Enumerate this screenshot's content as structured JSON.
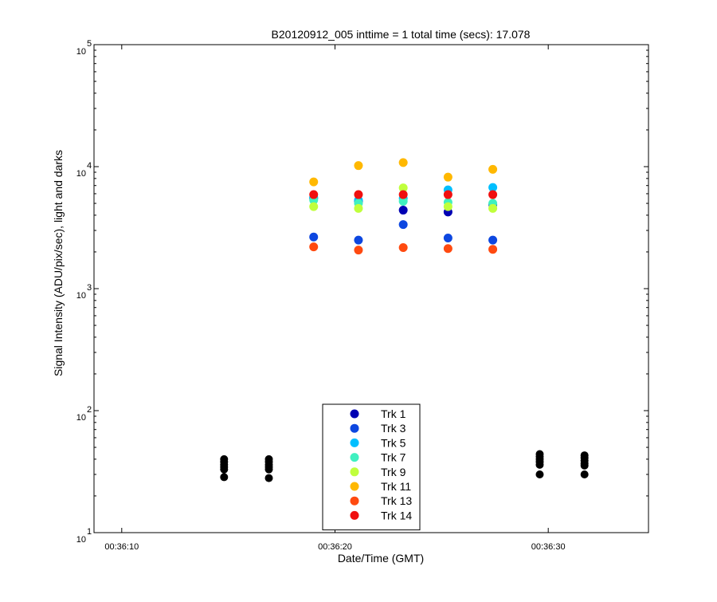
{
  "chart_data": {
    "type": "scatter",
    "title": "B20120912_005 inttime = 1 total time (secs): 17.078",
    "xlabel": "Date/Time (GMT)",
    "ylabel": "Signal Intensity (ADU/pix/sec), light and darks",
    "yscale": "log",
    "ylim": [
      10,
      100000
    ],
    "xlim": [
      "00:36:08.7",
      "00:36:34.7"
    ],
    "x_tick_labels": [
      "00:36:10",
      "00:36:20",
      "00:36:30"
    ],
    "x_ticks": [
      "00:36:10",
      "00:36:20",
      "00:36:30"
    ],
    "y_ticks": [
      {
        "base": "10",
        "exp": "1",
        "value": 10
      },
      {
        "base": "10",
        "exp": "2",
        "value": 100
      },
      {
        "base": "10",
        "exp": "3",
        "value": 1000
      },
      {
        "base": "10",
        "exp": "4",
        "value": 10000
      },
      {
        "base": "10",
        "exp": "5",
        "value": 100000
      }
    ],
    "grid": false,
    "legend_position": "bottom-center",
    "series": [
      {
        "name": "Trk 1",
        "color": "#0000b3",
        "points": [
          [
            "00:36:19.0",
            5500
          ],
          [
            "00:36:21.1",
            5200
          ],
          [
            "00:36:23.2",
            4400
          ],
          [
            "00:36:25.3",
            4250
          ],
          [
            "00:36:27.4",
            4900
          ]
        ]
      },
      {
        "name": "Trk 3",
        "color": "#0d47e0",
        "points": [
          [
            "00:36:19.0",
            2650
          ],
          [
            "00:36:21.1",
            2500
          ],
          [
            "00:36:23.2",
            3350
          ],
          [
            "00:36:25.3",
            2600
          ],
          [
            "00:36:27.4",
            2500
          ]
        ]
      },
      {
        "name": "Trk 5",
        "color": "#00bfff",
        "points": [
          [
            "00:36:19.0",
            5600
          ],
          [
            "00:36:21.1",
            5300
          ],
          [
            "00:36:23.2",
            5500
          ],
          [
            "00:36:25.3",
            6450
          ],
          [
            "00:36:27.4",
            6750
          ]
        ]
      },
      {
        "name": "Trk 7",
        "color": "#40f0c0",
        "points": [
          [
            "00:36:19.0",
            5300
          ],
          [
            "00:36:21.1",
            5000
          ],
          [
            "00:36:23.2",
            5200
          ],
          [
            "00:36:25.3",
            5100
          ],
          [
            "00:36:27.4",
            5000
          ]
        ]
      },
      {
        "name": "Trk 9",
        "color": "#c0ff3c",
        "points": [
          [
            "00:36:19.0",
            4700
          ],
          [
            "00:36:21.1",
            4550
          ],
          [
            "00:36:23.2",
            6700
          ],
          [
            "00:36:25.3",
            4700
          ],
          [
            "00:36:27.4",
            4550
          ]
        ]
      },
      {
        "name": "Trk 11",
        "color": "#ffb800",
        "points": [
          [
            "00:36:19.0",
            7500
          ],
          [
            "00:36:21.1",
            10200
          ],
          [
            "00:36:23.2",
            10800
          ],
          [
            "00:36:25.3",
            8200
          ],
          [
            "00:36:27.4",
            9500
          ]
        ]
      },
      {
        "name": "Trk 13",
        "color": "#ff4a10",
        "points": [
          [
            "00:36:19.0",
            2200
          ],
          [
            "00:36:21.1",
            2070
          ],
          [
            "00:36:23.2",
            2170
          ],
          [
            "00:36:25.3",
            2130
          ],
          [
            "00:36:27.4",
            2100
          ]
        ]
      },
      {
        "name": "Trk 14",
        "color": "#f01010",
        "points": [
          [
            "00:36:19.0",
            5900
          ],
          [
            "00:36:21.1",
            5900
          ],
          [
            "00:36:23.2",
            5900
          ],
          [
            "00:36:25.3",
            5900
          ],
          [
            "00:36:27.4",
            5900
          ]
        ]
      }
    ],
    "darks": {
      "color": "#000000",
      "points": [
        [
          "00:36:14.8",
          40
        ],
        [
          "00:36:14.8",
          38
        ],
        [
          "00:36:14.8",
          36
        ],
        [
          "00:36:14.8",
          34.5
        ],
        [
          "00:36:14.8",
          33
        ],
        [
          "00:36:14.8",
          28.5
        ],
        [
          "00:36:16.9",
          40
        ],
        [
          "00:36:16.9",
          38
        ],
        [
          "00:36:16.9",
          36
        ],
        [
          "00:36:16.9",
          34.5
        ],
        [
          "00:36:16.9",
          33
        ],
        [
          "00:36:16.9",
          28
        ],
        [
          "00:36:29.6",
          44
        ],
        [
          "00:36:29.6",
          42
        ],
        [
          "00:36:29.6",
          40
        ],
        [
          "00:36:29.6",
          38
        ],
        [
          "00:36:29.6",
          36
        ],
        [
          "00:36:29.6",
          30
        ],
        [
          "00:36:31.7",
          43
        ],
        [
          "00:36:31.7",
          41
        ],
        [
          "00:36:31.7",
          39
        ],
        [
          "00:36:31.7",
          37
        ],
        [
          "00:36:31.7",
          35.5
        ],
        [
          "00:36:31.7",
          30
        ]
      ]
    }
  }
}
